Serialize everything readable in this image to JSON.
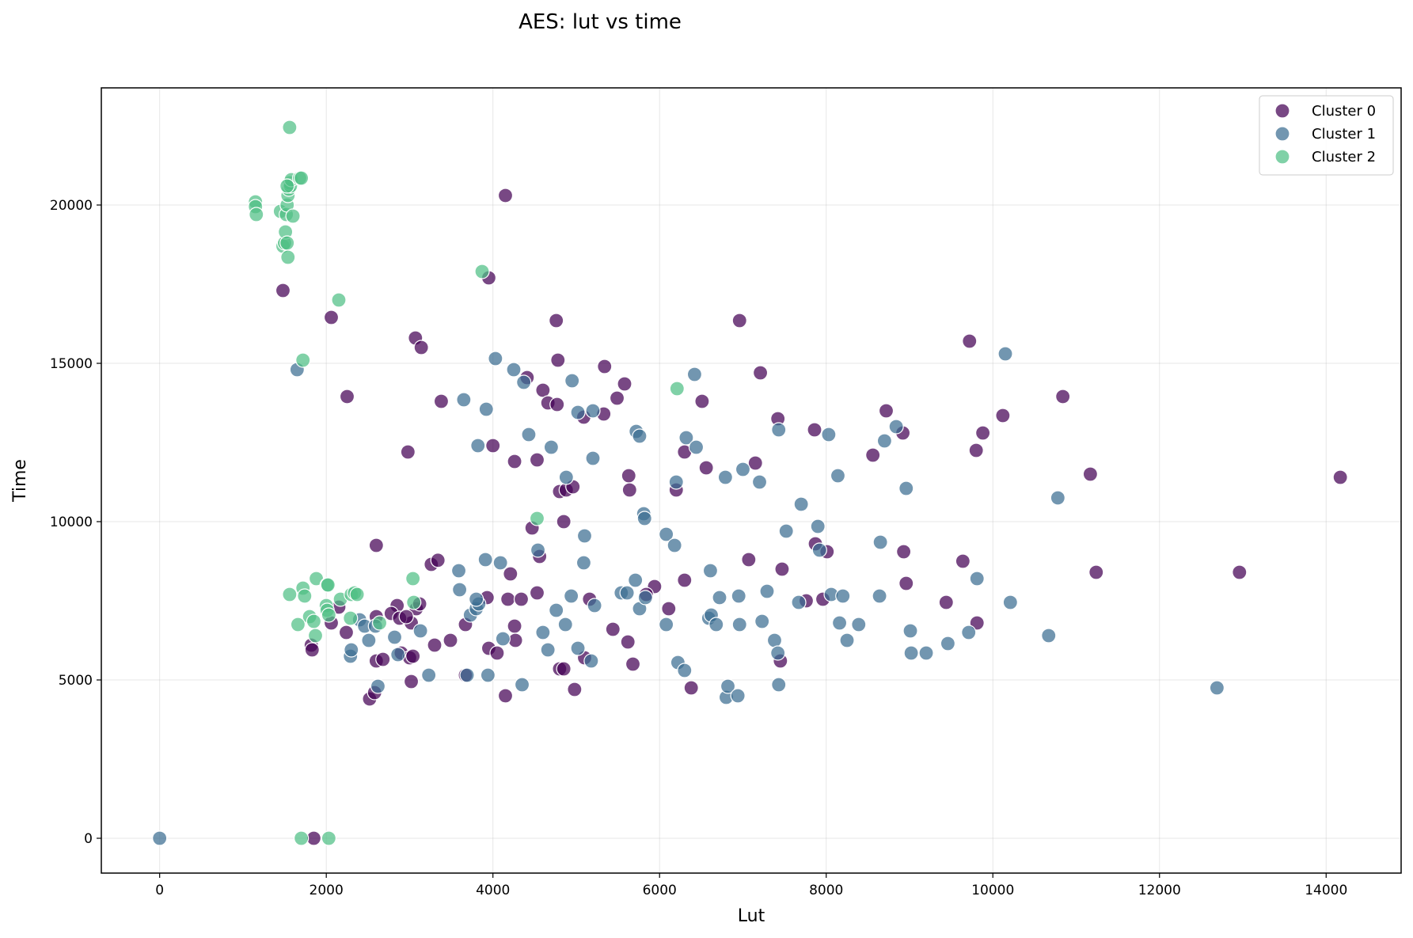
{
  "chart_data": {
    "type": "scatter",
    "title": "AES: lut vs time",
    "xlabel": "Lut",
    "ylabel": "Time",
    "xlim": [
      -700,
      14900
    ],
    "ylim": [
      -1100,
      23700
    ],
    "xticks": [
      0,
      2000,
      4000,
      6000,
      8000,
      10000,
      12000,
      14000
    ],
    "yticks": [
      0,
      5000,
      10000,
      15000,
      20000
    ],
    "grid": true,
    "legend_position": "top-right",
    "series": [
      {
        "name": "Cluster 0",
        "color": "#440154",
        "points": [
          [
            1480,
            17300
          ],
          [
            2060,
            16450
          ],
          [
            2250,
            13950
          ],
          [
            2980,
            12200
          ],
          [
            3070,
            15800
          ],
          [
            3140,
            15500
          ],
          [
            3380,
            13800
          ],
          [
            3950,
            17700
          ],
          [
            4000,
            12400
          ],
          [
            4150,
            20300
          ],
          [
            4260,
            11900
          ],
          [
            4410,
            14550
          ],
          [
            4530,
            11950
          ],
          [
            4600,
            14150
          ],
          [
            4660,
            13750
          ],
          [
            4760,
            16350
          ],
          [
            4780,
            15100
          ],
          [
            4770,
            13700
          ],
          [
            5090,
            13300
          ],
          [
            5340,
            14900
          ],
          [
            5330,
            13400
          ],
          [
            5490,
            13900
          ],
          [
            5580,
            14350
          ],
          [
            5630,
            11450
          ],
          [
            5640,
            11000
          ],
          [
            4800,
            10950
          ],
          [
            4880,
            11000
          ],
          [
            4960,
            11100
          ],
          [
            4850,
            10000
          ],
          [
            4470,
            9800
          ],
          [
            4560,
            8900
          ],
          [
            2600,
            9250
          ],
          [
            3260,
            8650
          ],
          [
            3340,
            8780
          ],
          [
            4210,
            8350
          ],
          [
            3930,
            7600
          ],
          [
            4180,
            7550
          ],
          [
            4340,
            7550
          ],
          [
            4530,
            7750
          ],
          [
            3670,
            6750
          ],
          [
            3490,
            6250
          ],
          [
            3300,
            6100
          ],
          [
            3020,
            6800
          ],
          [
            2850,
            7350
          ],
          [
            2780,
            7100
          ],
          [
            2880,
            6950
          ],
          [
            3080,
            7250
          ],
          [
            3120,
            7400
          ],
          [
            2960,
            7000
          ],
          [
            2600,
            7000
          ],
          [
            2150,
            7300
          ],
          [
            2060,
            6800
          ],
          [
            2240,
            6500
          ],
          [
            1820,
            6100
          ],
          [
            1830,
            5950
          ],
          [
            2600,
            5600
          ],
          [
            2680,
            5650
          ],
          [
            2900,
            5850
          ],
          [
            3000,
            5700
          ],
          [
            3040,
            5750
          ],
          [
            2520,
            4400
          ],
          [
            2580,
            4600
          ],
          [
            3020,
            4950
          ],
          [
            3670,
            5150
          ],
          [
            3950,
            6000
          ],
          [
            4050,
            5850
          ],
          [
            4260,
            6700
          ],
          [
            4270,
            6250
          ],
          [
            4800,
            5350
          ],
          [
            4850,
            5350
          ],
          [
            4980,
            4700
          ],
          [
            4150,
            4500
          ],
          [
            5100,
            5700
          ],
          [
            5160,
            7550
          ],
          [
            5440,
            6600
          ],
          [
            5620,
            6200
          ],
          [
            5680,
            5500
          ],
          [
            5940,
            7950
          ],
          [
            5840,
            7700
          ],
          [
            6110,
            7250
          ],
          [
            6200,
            11000
          ],
          [
            6300,
            12200
          ],
          [
            6510,
            13800
          ],
          [
            6560,
            11700
          ],
          [
            6300,
            8150
          ],
          [
            6380,
            4750
          ],
          [
            6960,
            16350
          ],
          [
            7210,
            14700
          ],
          [
            7150,
            11850
          ],
          [
            7070,
            8800
          ],
          [
            7420,
            13250
          ],
          [
            7470,
            8500
          ],
          [
            7450,
            5600
          ],
          [
            7760,
            7500
          ],
          [
            7860,
            12900
          ],
          [
            7870,
            9300
          ],
          [
            7960,
            7550
          ],
          [
            8010,
            9050
          ],
          [
            8560,
            12100
          ],
          [
            8720,
            13500
          ],
          [
            8920,
            12800
          ],
          [
            8930,
            9050
          ],
          [
            8960,
            8050
          ],
          [
            9440,
            7450
          ],
          [
            9640,
            8750
          ],
          [
            9720,
            15700
          ],
          [
            9800,
            12250
          ],
          [
            9880,
            12800
          ],
          [
            9810,
            6800
          ],
          [
            10120,
            13350
          ],
          [
            10840,
            13950
          ],
          [
            11170,
            11500
          ],
          [
            11240,
            8400
          ],
          [
            12960,
            8400
          ],
          [
            14170,
            11400
          ],
          [
            1850,
            0
          ]
        ]
      },
      {
        "name": "Cluster 1",
        "color": "#3b6e91",
        "points": [
          [
            0,
            0
          ],
          [
            1650,
            14800
          ],
          [
            3650,
            13850
          ],
          [
            3920,
            13550
          ],
          [
            3820,
            12400
          ],
          [
            4030,
            15150
          ],
          [
            4250,
            14800
          ],
          [
            4370,
            14400
          ],
          [
            4430,
            12750
          ],
          [
            4700,
            12350
          ],
          [
            4950,
            14450
          ],
          [
            5020,
            13450
          ],
          [
            5200,
            13500
          ],
          [
            5200,
            12000
          ],
          [
            4880,
            11400
          ],
          [
            5720,
            12850
          ],
          [
            5760,
            12700
          ],
          [
            5810,
            10250
          ],
          [
            5820,
            10100
          ],
          [
            6420,
            14650
          ],
          [
            6320,
            12650
          ],
          [
            6440,
            12350
          ],
          [
            6200,
            11250
          ],
          [
            6790,
            11400
          ],
          [
            7000,
            11650
          ],
          [
            7200,
            11250
          ],
          [
            7430,
            12900
          ],
          [
            7700,
            10550
          ],
          [
            7520,
            9700
          ],
          [
            7900,
            9850
          ],
          [
            8030,
            12750
          ],
          [
            8140,
            11450
          ],
          [
            8840,
            13000
          ],
          [
            8700,
            12550
          ],
          [
            8960,
            11050
          ],
          [
            10150,
            15300
          ],
          [
            10780,
            10750
          ],
          [
            4540,
            9100
          ],
          [
            4090,
            8700
          ],
          [
            3910,
            8800
          ],
          [
            3590,
            8450
          ],
          [
            3600,
            7850
          ],
          [
            3730,
            7050
          ],
          [
            3800,
            7250
          ],
          [
            3830,
            7400
          ],
          [
            3800,
            7550
          ],
          [
            2400,
            6900
          ],
          [
            2460,
            6700
          ],
          [
            2510,
            6250
          ],
          [
            2590,
            6700
          ],
          [
            2290,
            5750
          ],
          [
            2300,
            5950
          ],
          [
            2620,
            4800
          ],
          [
            2820,
            6350
          ],
          [
            2860,
            5800
          ],
          [
            3130,
            6550
          ],
          [
            3230,
            5150
          ],
          [
            3940,
            5150
          ],
          [
            3690,
            5150
          ],
          [
            4120,
            6300
          ],
          [
            4350,
            4850
          ],
          [
            4600,
            6500
          ],
          [
            4660,
            5950
          ],
          [
            4760,
            7200
          ],
          [
            4870,
            6750
          ],
          [
            4940,
            7650
          ],
          [
            5020,
            6000
          ],
          [
            5090,
            8700
          ],
          [
            5100,
            9550
          ],
          [
            5180,
            5600
          ],
          [
            5220,
            7350
          ],
          [
            5540,
            7750
          ],
          [
            5610,
            7750
          ],
          [
            5710,
            8150
          ],
          [
            5760,
            7250
          ],
          [
            5830,
            7600
          ],
          [
            6080,
            9600
          ],
          [
            6180,
            9250
          ],
          [
            6080,
            6750
          ],
          [
            6220,
            5550
          ],
          [
            6300,
            5300
          ],
          [
            6590,
            6950
          ],
          [
            6620,
            7050
          ],
          [
            6610,
            8450
          ],
          [
            6680,
            6750
          ],
          [
            6720,
            7600
          ],
          [
            6800,
            4450
          ],
          [
            6820,
            4800
          ],
          [
            6940,
            4500
          ],
          [
            6950,
            7650
          ],
          [
            6960,
            6750
          ],
          [
            7230,
            6850
          ],
          [
            7290,
            7800
          ],
          [
            7380,
            6250
          ],
          [
            7420,
            5850
          ],
          [
            7430,
            4850
          ],
          [
            7670,
            7450
          ],
          [
            7920,
            9100
          ],
          [
            8060,
            7700
          ],
          [
            8200,
            7650
          ],
          [
            8160,
            6800
          ],
          [
            8250,
            6250
          ],
          [
            8390,
            6750
          ],
          [
            8640,
            7650
          ],
          [
            8650,
            9350
          ],
          [
            9010,
            6550
          ],
          [
            9020,
            5850
          ],
          [
            9200,
            5850
          ],
          [
            9460,
            6150
          ],
          [
            9710,
            6500
          ],
          [
            9810,
            8200
          ],
          [
            10210,
            7450
          ],
          [
            10670,
            6400
          ],
          [
            12690,
            4750
          ]
        ]
      },
      {
        "name": "Cluster 2",
        "color": "#4fbf85",
        "points": [
          [
            1150,
            20100
          ],
          [
            1150,
            19950
          ],
          [
            1160,
            19700
          ],
          [
            1450,
            19800
          ],
          [
            1480,
            18700
          ],
          [
            1500,
            18800
          ],
          [
            1510,
            19150
          ],
          [
            1520,
            19700
          ],
          [
            1530,
            20000
          ],
          [
            1540,
            20300
          ],
          [
            1550,
            20500
          ],
          [
            1560,
            20700
          ],
          [
            1570,
            20600
          ],
          [
            1580,
            20800
          ],
          [
            1600,
            19650
          ],
          [
            1680,
            20850
          ],
          [
            1700,
            20850
          ],
          [
            1560,
            22450
          ],
          [
            1530,
            18800
          ],
          [
            1540,
            18350
          ],
          [
            1530,
            20600
          ],
          [
            3870,
            17900
          ],
          [
            2150,
            17000
          ],
          [
            1720,
            15100
          ],
          [
            6210,
            14200
          ],
          [
            4530,
            10100
          ],
          [
            1560,
            7700
          ],
          [
            1720,
            7900
          ],
          [
            1740,
            7650
          ],
          [
            1880,
            8200
          ],
          [
            2010,
            8000
          ],
          [
            2020,
            8000
          ],
          [
            2000,
            7350
          ],
          [
            2010,
            7200
          ],
          [
            2030,
            7050
          ],
          [
            1800,
            7000
          ],
          [
            1850,
            6850
          ],
          [
            1870,
            6400
          ],
          [
            1660,
            6750
          ],
          [
            2170,
            7550
          ],
          [
            2300,
            7700
          ],
          [
            2340,
            7750
          ],
          [
            2370,
            7700
          ],
          [
            2290,
            6950
          ],
          [
            2640,
            6800
          ],
          [
            3040,
            8200
          ],
          [
            3050,
            7450
          ],
          [
            1700,
            0
          ],
          [
            2030,
            0
          ]
        ]
      }
    ]
  }
}
